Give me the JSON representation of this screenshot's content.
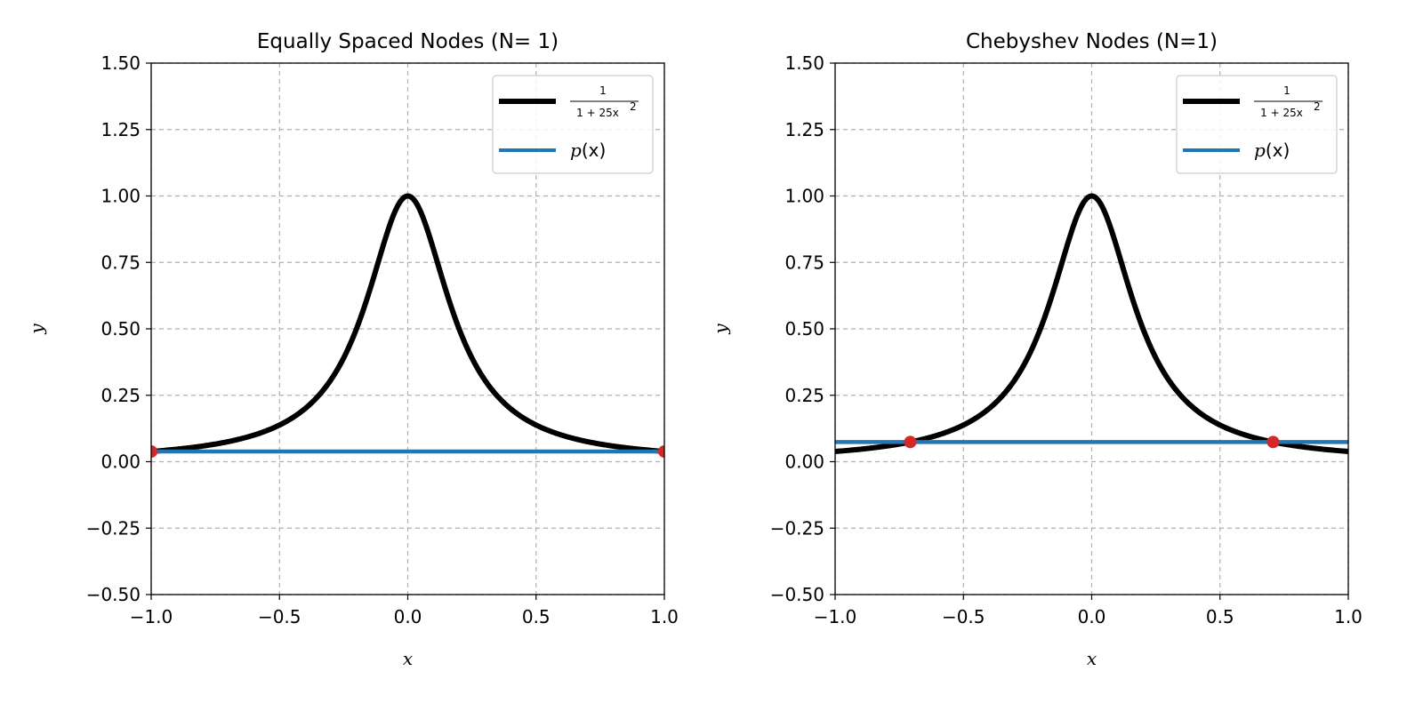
{
  "chart_data": [
    {
      "type": "line",
      "title": "Equally Spaced Nodes (N= 1)",
      "xlabel": "x",
      "ylabel": "y",
      "xlim": [
        -1.0,
        1.0
      ],
      "ylim": [
        -0.5,
        1.5
      ],
      "xticks": [
        -1.0,
        -0.5,
        0.0,
        0.5,
        1.0
      ],
      "xtick_labels": [
        "−1.0",
        "−0.5",
        "0.0",
        "0.5",
        "1.0"
      ],
      "yticks": [
        -0.5,
        -0.25,
        0.0,
        0.25,
        0.5,
        0.75,
        1.0,
        1.25,
        1.5
      ],
      "ytick_labels": [
        "−0.50",
        "−0.25",
        "0.00",
        "0.25",
        "0.50",
        "0.75",
        "1.00",
        "1.25",
        "1.50"
      ],
      "grid": true,
      "legend_position": "top-right",
      "series": [
        {
          "name": "1/(1+25x^2)",
          "legend_numerator": "1",
          "legend_denominator": "1 + 25x",
          "legend_exponent": "2",
          "function": "runge",
          "color": "#000000"
        },
        {
          "name": "p(x)",
          "legend_label_p": "p",
          "legend_label_rest": "(x)",
          "function": "constant",
          "constant": 0.0385,
          "color": "#1f77b4"
        }
      ],
      "nodes": {
        "x": [
          -1.0,
          1.0
        ],
        "y": [
          0.0385,
          0.0385
        ],
        "color": "#d62728"
      }
    },
    {
      "type": "line",
      "title": "Chebyshev Nodes (N=1)",
      "xlabel": "x",
      "ylabel": "y",
      "xlim": [
        -1.0,
        1.0
      ],
      "ylim": [
        -0.5,
        1.5
      ],
      "xticks": [
        -1.0,
        -0.5,
        0.0,
        0.5,
        1.0
      ],
      "xtick_labels": [
        "−1.0",
        "−0.5",
        "0.0",
        "0.5",
        "1.0"
      ],
      "yticks": [
        -0.5,
        -0.25,
        0.0,
        0.25,
        0.5,
        0.75,
        1.0,
        1.25,
        1.5
      ],
      "ytick_labels": [
        "−0.50",
        "−0.25",
        "0.00",
        "0.25",
        "0.50",
        "0.75",
        "1.00",
        "1.25",
        "1.50"
      ],
      "grid": true,
      "legend_position": "top-right",
      "series": [
        {
          "name": "1/(1+25x^2)",
          "legend_numerator": "1",
          "legend_denominator": "1 + 25x",
          "legend_exponent": "2",
          "function": "runge",
          "color": "#000000"
        },
        {
          "name": "p(x)",
          "legend_label_p": "p",
          "legend_label_rest": "(x)",
          "function": "constant",
          "constant": 0.0741,
          "color": "#1f77b4"
        }
      ],
      "nodes": {
        "x": [
          -0.7071,
          0.7071
        ],
        "y": [
          0.0741,
          0.0741
        ],
        "color": "#d62728"
      }
    }
  ]
}
